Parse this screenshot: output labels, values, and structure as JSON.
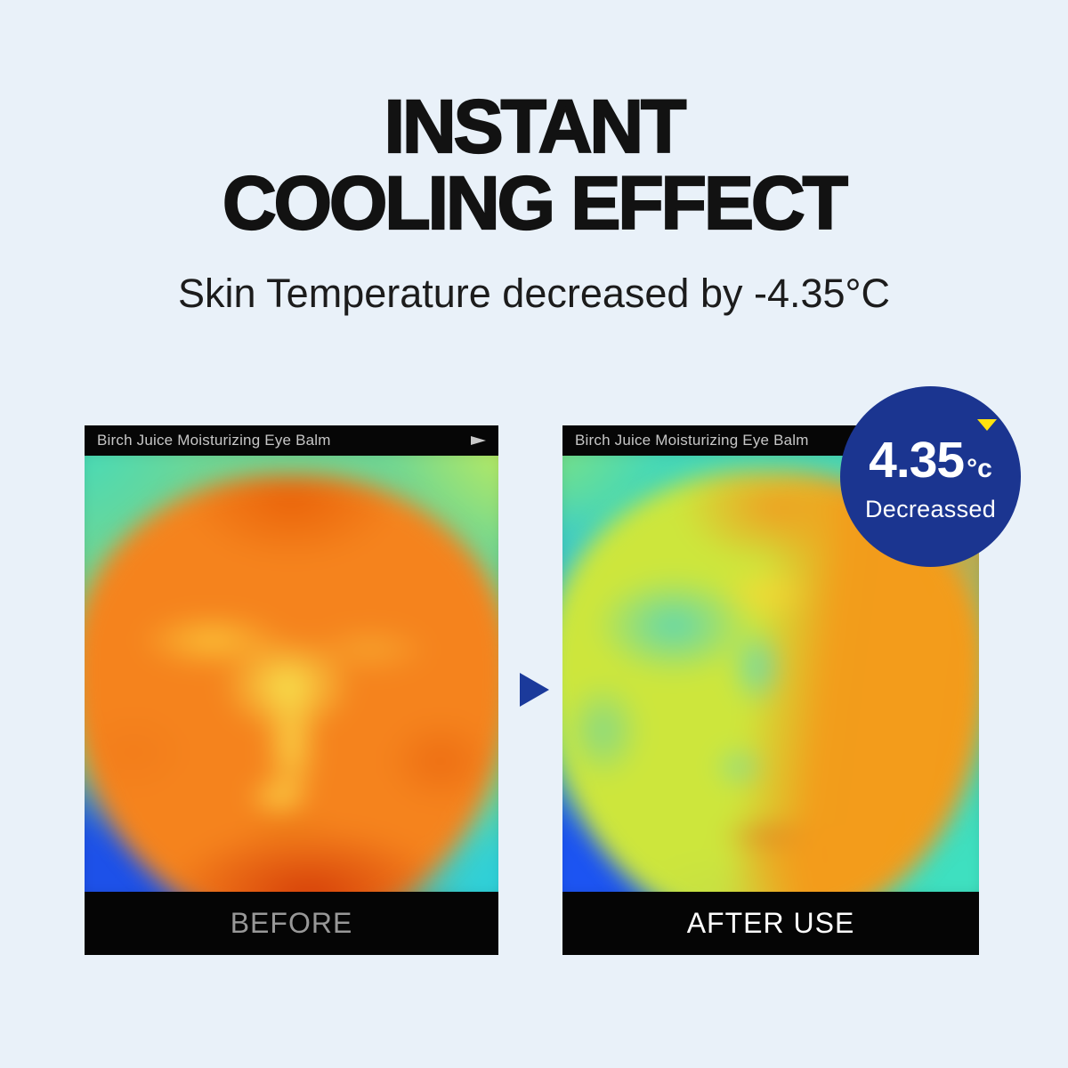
{
  "title": {
    "line1": "INSTANT",
    "line2": "COOLING EFFECT"
  },
  "subtitle": "Skin Temperature decreased by -4.35°C",
  "panels": {
    "before": {
      "header": "Birch Juice Moisturizing Eye Balm",
      "label": "BEFORE"
    },
    "after": {
      "header": "Birch Juice Moisturizing Eye Balm",
      "label": "AFTER USE"
    }
  },
  "badge": {
    "value": "4.35",
    "unit": "°c",
    "caption": "Decreassed"
  },
  "icons": {
    "play_icon": "play-triangle",
    "arrow_icon": "arrow-right-triangle",
    "badge_triangle": "triangle-down"
  },
  "colors": {
    "background": "#e9f1f9",
    "accent_navy": "#1b3590",
    "highlight_yellow": "#ffe20e",
    "bar_black": "#060606",
    "header_text": "#c6c6c6",
    "before_label": "#989898",
    "after_label": "#ffffff",
    "title_text": "#121212"
  }
}
